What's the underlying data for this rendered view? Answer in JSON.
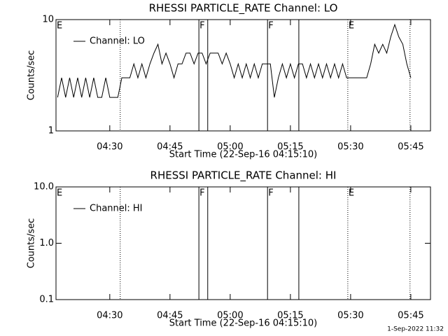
{
  "chart_data": [
    {
      "type": "line",
      "title": "RHESSI PARTICLE_RATE Channel: LO",
      "x_label": "Start Time (22-Sep-16 04:15:10)",
      "y_label": "Counts/sec",
      "log_y": true,
      "xlim": [
        256.6,
        349.9
      ],
      "ylim": [
        1,
        10
      ],
      "xticks": [
        {
          "value": 270,
          "label": "04:30"
        },
        {
          "value": 285,
          "label": "04:45"
        },
        {
          "value": 300,
          "label": "05:00"
        },
        {
          "value": 315,
          "label": "05:15"
        },
        {
          "value": 330,
          "label": "05:30"
        },
        {
          "value": 345,
          "label": "05:45"
        }
      ],
      "yticks": [
        1,
        10
      ],
      "x": [
        257,
        258,
        259,
        260,
        261,
        262,
        263,
        264,
        265,
        266,
        267,
        268,
        269,
        270,
        271,
        272,
        273,
        274,
        275,
        276,
        277,
        278,
        279,
        280,
        281,
        282,
        283,
        284,
        285,
        286,
        287,
        288,
        289,
        290,
        291,
        292,
        293,
        294,
        295,
        296,
        297,
        298,
        299,
        300,
        301,
        302,
        303,
        304,
        305,
        306,
        307,
        308,
        309,
        310,
        311,
        312,
        313,
        314,
        315,
        316,
        317,
        318,
        319,
        320,
        321,
        322,
        323,
        324,
        325,
        326,
        327,
        328,
        329,
        330,
        331,
        332,
        333,
        334,
        335,
        336,
        337,
        338,
        339,
        340,
        341,
        342,
        343,
        344,
        345
      ],
      "series": [
        {
          "name": "Channel: LO",
          "color": "#000000",
          "values": [
            2,
            3,
            2,
            3,
            2,
            3,
            2,
            3,
            2,
            3,
            2,
            2,
            3,
            2,
            2,
            2,
            3,
            3,
            3,
            4,
            3,
            4,
            3,
            4,
            5,
            6,
            4,
            5,
            4,
            3,
            4,
            4,
            5,
            5,
            4,
            5,
            5,
            4,
            5,
            5,
            5,
            4,
            5,
            4,
            3,
            4,
            3,
            4,
            3,
            4,
            3,
            4,
            4,
            4,
            2,
            3,
            4,
            3,
            4,
            3,
            4,
            4,
            3,
            4,
            3,
            4,
            3,
            4,
            3,
            4,
            3,
            4,
            3,
            3,
            3,
            3,
            3,
            3,
            4,
            6,
            5,
            6,
            5,
            7,
            9,
            7,
            6,
            4,
            3
          ]
        }
      ],
      "legend": "upper left",
      "markers": [
        {
          "x": 256.6,
          "style": "dotted",
          "label": "E"
        },
        {
          "x": 272.6,
          "style": "dotted"
        },
        {
          "x": 292.2,
          "style": "solid",
          "label": "F"
        },
        {
          "x": 294.4,
          "style": "solid"
        },
        {
          "x": 309.3,
          "style": "solid",
          "label": "F"
        },
        {
          "x": 317.1,
          "style": "solid"
        },
        {
          "x": 329.3,
          "style": "dotted",
          "label": "E"
        },
        {
          "x": 344.8,
          "style": "dotted"
        }
      ]
    },
    {
      "type": "line",
      "title": "RHESSI PARTICLE_RATE Channel: HI",
      "x_label": "Start Time (22-Sep-16 04:15:10)",
      "y_label": "Counts/sec",
      "log_y": true,
      "xlim": [
        256.6,
        349.9
      ],
      "ylim": [
        0.1,
        10
      ],
      "xticks": [
        {
          "value": 270,
          "label": "04:30"
        },
        {
          "value": 285,
          "label": "04:45"
        },
        {
          "value": 300,
          "label": "05:00"
        },
        {
          "value": 315,
          "label": "05:15"
        },
        {
          "value": 330,
          "label": "05:30"
        },
        {
          "value": 345,
          "label": "05:45"
        }
      ],
      "yticks": [
        0.1,
        {
          "value": 1,
          "label": "1.0"
        },
        {
          "value": 10,
          "label": "10.0"
        }
      ],
      "x": [],
      "series": [
        {
          "name": "Channel: HI",
          "color": "#000000",
          "values": []
        }
      ],
      "legend": "upper left",
      "markers": [
        {
          "x": 256.6,
          "style": "dotted",
          "label": "E"
        },
        {
          "x": 272.6,
          "style": "dotted"
        },
        {
          "x": 292.2,
          "style": "solid",
          "label": "F"
        },
        {
          "x": 294.4,
          "style": "solid"
        },
        {
          "x": 309.3,
          "style": "solid",
          "label": "F"
        },
        {
          "x": 317.1,
          "style": "solid"
        },
        {
          "x": 329.3,
          "style": "dotted",
          "label": "E"
        },
        {
          "x": 344.8,
          "style": "dotted"
        }
      ]
    }
  ],
  "footer": "1-Sep-2022 11:32"
}
